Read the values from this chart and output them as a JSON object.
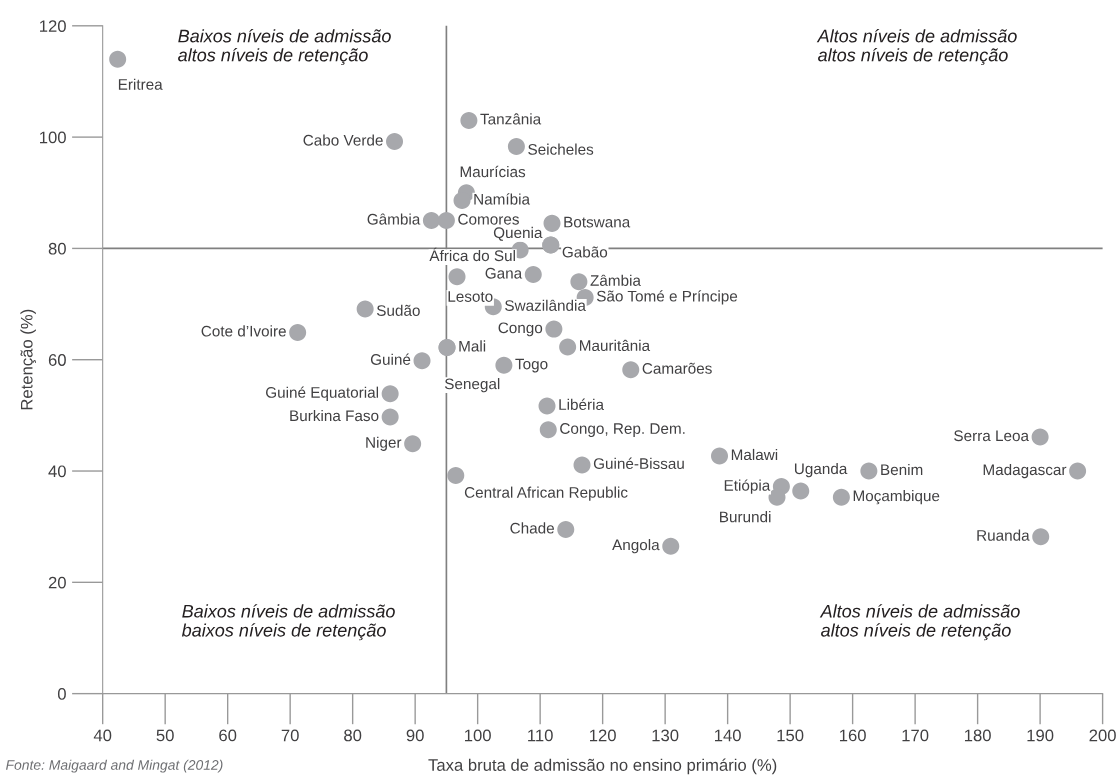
{
  "chart_data": {
    "type": "scatter",
    "xlabel": "Taxa bruta de admissão no ensino primário (%)",
    "ylabel": "Retenção (%)",
    "xlim": [
      40,
      200
    ],
    "xticks": [
      40,
      50,
      60,
      70,
      80,
      90,
      100,
      110,
      120,
      130,
      140,
      150,
      160,
      170,
      180,
      190,
      200
    ],
    "ylim": [
      0,
      120
    ],
    "yticks": [
      0,
      20,
      40,
      60,
      80,
      100,
      120
    ],
    "grid": false,
    "marker": "circle",
    "series": [
      {
        "color": "#a7a8ac",
        "x": [
          42.4,
          86.7,
          98.6,
          106.2,
          98.2,
          97.5,
          92.6,
          95.0,
          111.9,
          106.8,
          111.7,
          111.7,
          108.9,
          96.7,
          116.2,
          117.2,
          102.5,
          82.0,
          71.2,
          112.2,
          114.4,
          95.1,
          91.1,
          104.2,
          124.5,
          95.1,
          86.0,
          86.0,
          89.6,
          111.1,
          111.3,
          116.7,
          96.5,
          114.1,
          130.9,
          138.7,
          148.6,
          147.9,
          151.7,
          162.6,
          158.2,
          190.0,
          196.0,
          190.1
        ],
        "values": [
          114.0,
          99.2,
          103.0,
          98.3,
          90.0,
          88.6,
          85.0,
          85.0,
          84.5,
          79.7,
          80.6,
          80.6,
          75.3,
          74.9,
          74.0,
          71.2,
          69.5,
          69.1,
          64.9,
          65.5,
          62.3,
          62.2,
          59.8,
          59.0,
          58.2,
          62.2,
          53.9,
          49.7,
          44.9,
          51.7,
          47.4,
          41.1,
          39.2,
          29.5,
          26.5,
          42.7,
          37.2,
          35.3,
          36.4,
          40.0,
          35.3,
          46.1,
          40.0,
          28.2
        ],
        "value_labels": [
          "Eritrea",
          "Cabo Verde",
          "Tanzânia",
          "Seicheles",
          "Maurícias",
          "Namíbia",
          "Gâmbia",
          "Comores",
          "Botswana",
          "África do Sul",
          "Quenia",
          "Gabão",
          "Gana",
          "Lesoto",
          "Zâmbia",
          "São Tomé e Príncipe",
          "Swazilândia",
          "Sudão",
          "Cote d’Ivoire",
          "Congo",
          "Mauritânia",
          "Mali",
          "Guiné",
          "Togo",
          "Camarões",
          "Senegal",
          "Guiné Equatorial",
          "Burkina Faso",
          "Niger",
          "Libéria",
          "Congo, Rep. Dem.",
          "Guiné-Bissau",
          "Central African Republic",
          "Chade",
          "Angola",
          "Malawi",
          "Etiópia",
          "Burundi",
          "Uganda",
          "Benim",
          "Moçambique",
          "Serra Leoa",
          "Madagascar",
          "Ruanda"
        ]
      }
    ],
    "ref_lines": [
      {
        "axis": "x",
        "value": 95,
        "color": "#808080"
      },
      {
        "axis": "y",
        "value": 80,
        "color": "#808080"
      }
    ],
    "annotations": [
      "Baixos níveis de admissão\naltos níveis de retenção",
      "Altos níveis de admissão\naltos níveis de retenção",
      "Baixos níveis de admissão\nbaixos níveis de retenção",
      "Altos níveis de admissão\naltos níveis de retenção",
      "Fonte: Maigaard and Mingat (2012)"
    ]
  }
}
